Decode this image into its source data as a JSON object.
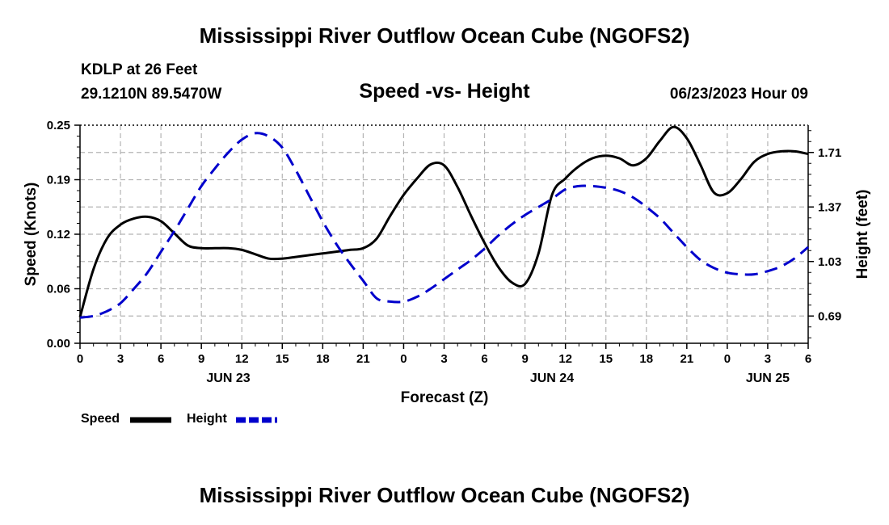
{
  "title": "Mississippi River Outflow Ocean Cube (NGOFS2)",
  "station": {
    "name": "KDLP at 26 Feet",
    "coords": "29.1210N  89.5470W"
  },
  "subtitle": "Speed -vs- Height",
  "datetime": "06/23/2023 Hour 09",
  "chart_data": {
    "type": "line",
    "title": "Speed -vs- Height",
    "xlabel": "Forecast (Z)",
    "ylabel": "Speed (Knots)",
    "y2label": "Height (feet)",
    "x_range_hours": [
      0,
      54
    ],
    "x_tick_labels": [
      "0",
      "3",
      "6",
      "9",
      "12",
      "15",
      "18",
      "21",
      "0",
      "3",
      "6",
      "9",
      "12",
      "15",
      "18",
      "21",
      "0",
      "3",
      "6"
    ],
    "date_labels": [
      {
        "hour": 11,
        "label": "JUN 23"
      },
      {
        "hour": 35,
        "label": "JUN 24"
      },
      {
        "hour": 51,
        "label": "JUN 25"
      }
    ],
    "ylim": [
      0,
      0.25
    ],
    "y_tick_labels": [
      "0.00",
      "0.06",
      "0.12",
      "0.19",
      "0.25"
    ],
    "y_ticks": [
      0,
      0.0625,
      0.125,
      0.1875,
      0.25
    ],
    "y2lim": [
      0.52,
      1.88
    ],
    "y2_tick_labels": [
      "0.69",
      "1.03",
      "1.37",
      "1.71"
    ],
    "y2_ticks": [
      0.69,
      1.03,
      1.37,
      1.71
    ],
    "grid": true,
    "series": [
      {
        "name": "Speed",
        "axis": "left",
        "style": "solid",
        "color": "#000000",
        "x": [
          0,
          1,
          2,
          3,
          4,
          5,
          6,
          7,
          8,
          9,
          10,
          11,
          12,
          13,
          14,
          15,
          16,
          17,
          18,
          19,
          20,
          21,
          22,
          23,
          24,
          25,
          26,
          27,
          28,
          29,
          30,
          31,
          32,
          33,
          34,
          35,
          36,
          37,
          38,
          39,
          40,
          41,
          42,
          43,
          44,
          45,
          46,
          47,
          48,
          49,
          50,
          51,
          52,
          53,
          54
        ],
        "values": [
          0.03,
          0.085,
          0.12,
          0.136,
          0.143,
          0.145,
          0.14,
          0.126,
          0.112,
          0.109,
          0.109,
          0.109,
          0.107,
          0.102,
          0.097,
          0.097,
          0.099,
          0.101,
          0.103,
          0.105,
          0.107,
          0.109,
          0.12,
          0.146,
          0.17,
          0.189,
          0.205,
          0.204,
          0.179,
          0.146,
          0.115,
          0.088,
          0.07,
          0.068,
          0.103,
          0.17,
          0.189,
          0.203,
          0.212,
          0.215,
          0.212,
          0.204,
          0.212,
          0.232,
          0.248,
          0.235,
          0.205,
          0.173,
          0.172,
          0.188,
          0.208,
          0.217,
          0.22,
          0.22,
          0.217
        ]
      },
      {
        "name": "Height",
        "axis": "right",
        "style": "dashed",
        "color": "#0000cc",
        "x": [
          0,
          1,
          2,
          3,
          4,
          5,
          6,
          7,
          8,
          9,
          10,
          11,
          12,
          13,
          14,
          15,
          16,
          17,
          18,
          19,
          20,
          21,
          22,
          23,
          24,
          25,
          26,
          27,
          28,
          29,
          30,
          31,
          32,
          33,
          34,
          35,
          36,
          37,
          38,
          39,
          40,
          41,
          42,
          43,
          44,
          45,
          46,
          47,
          48,
          49,
          50,
          51,
          52,
          53,
          54
        ],
        "values": [
          0.68,
          0.69,
          0.72,
          0.77,
          0.86,
          0.96,
          1.09,
          1.22,
          1.36,
          1.5,
          1.61,
          1.71,
          1.79,
          1.83,
          1.81,
          1.74,
          1.6,
          1.44,
          1.28,
          1.14,
          1.02,
          0.91,
          0.8,
          0.78,
          0.78,
          0.81,
          0.86,
          0.92,
          0.98,
          1.04,
          1.11,
          1.19,
          1.26,
          1.32,
          1.37,
          1.42,
          1.48,
          1.5,
          1.5,
          1.49,
          1.47,
          1.43,
          1.37,
          1.3,
          1.21,
          1.12,
          1.04,
          0.99,
          0.96,
          0.95,
          0.95,
          0.97,
          1.0,
          1.05,
          1.12
        ]
      }
    ],
    "legend": [
      {
        "label": "Speed",
        "style": "solid",
        "color": "#000000"
      },
      {
        "label": "Height",
        "style": "dashed",
        "color": "#0000cc"
      }
    ]
  }
}
